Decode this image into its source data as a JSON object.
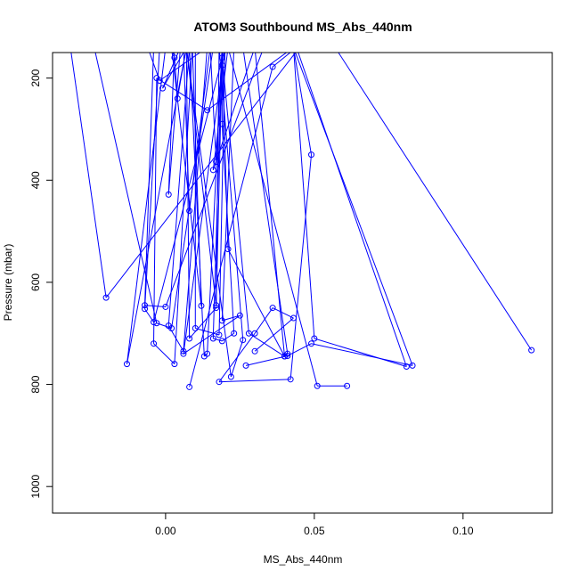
{
  "chart_data": {
    "type": "line",
    "title": "ATOM3 Southbound MS_Abs_440nm",
    "xlabel": "MS_Abs_440nm",
    "ylabel": "Pressure (mbar)",
    "xlim": [
      -0.038,
      0.13
    ],
    "ylim": [
      1052,
      150
    ],
    "y_reversed": true,
    "x_ticks": [
      0.0,
      0.05,
      0.1
    ],
    "x_tick_labels": [
      "0.00",
      "0.05",
      "0.10"
    ],
    "y_ticks": [
      200,
      400,
      600,
      800,
      1000
    ],
    "y_tick_labels": [
      "200",
      "400",
      "600",
      "800",
      "1000"
    ],
    "grid": false,
    "legend": "none",
    "series_color": "#0000ff",
    "series": [
      {
        "x": [
          -0.032,
          -0.02,
          0.045,
          0.057,
          0.123
        ],
        "y": [
          140,
          630,
          140,
          140,
          733
        ]
      },
      {
        "x": [
          -0.004,
          -0.007,
          0.0,
          0.033,
          0.043,
          0.05,
          0.081,
          0.044,
          0.036,
          0.008
        ],
        "y": [
          140,
          645,
          648,
          140,
          140,
          710,
          765,
          140,
          178,
          805
        ]
      },
      {
        "x": [
          -0.002,
          -0.007,
          -0.004,
          0.02,
          0.0,
          -0.001,
          0.019,
          0.019,
          0.021,
          0.051,
          0.061
        ],
        "y": [
          140,
          652,
          678,
          140,
          140,
          140,
          140,
          140,
          140,
          803,
          803
        ]
      },
      {
        "x": [
          -0.024,
          -0.003,
          0.002,
          0.016,
          0.002,
          0.012,
          0.009,
          0.003,
          -0.004,
          -0.003,
          0.014,
          0.043,
          0.083,
          0.049,
          0.041,
          0.027
        ],
        "y": [
          140,
          680,
          690,
          140,
          140,
          646,
          140,
          760,
          720,
          200,
          263,
          140,
          763,
          720,
          744,
          763
        ]
      },
      {
        "x": [
          0.01,
          0.01,
          0.018,
          0.02,
          0.023,
          0.019,
          0.025,
          0.006,
          0.02,
          0.021,
          0.016,
          0.03,
          0.04,
          0.041,
          0.026,
          0.018,
          0.026,
          0.022,
          0.007
        ],
        "y": [
          140,
          690,
          703,
          140,
          140,
          675,
          665,
          740,
          140,
          140,
          380,
          140,
          745,
          740,
          140,
          140,
          713,
          785,
          140
        ]
      },
      {
        "x": [
          -0.006,
          -0.002,
          0.014,
          0.006,
          0.001,
          0.008,
          0.013,
          0.014,
          0.019,
          0.019,
          0.023,
          0.019,
          0.016,
          0.019,
          0.043,
          0.049,
          0.042,
          0.018,
          0.03,
          0.036,
          0.043,
          0.03
        ],
        "y": [
          140,
          205,
          140,
          735,
          685,
          140,
          745,
          740,
          140,
          290,
          700,
          715,
          710,
          140,
          140,
          350,
          790,
          795,
          700,
          650,
          670,
          735
        ]
      },
      {
        "x": [
          0.007,
          -0.001,
          0.005,
          0.001,
          0.003,
          0.006,
          0.008,
          0.015,
          0.017,
          0.019,
          0.019,
          0.021,
          0.04,
          0.028,
          0.019,
          0.017,
          0.008,
          0.007,
          0.002,
          0.003,
          0.004,
          0.007,
          -0.013,
          0.0,
          0.007,
          0.017,
          0.018,
          0.019,
          0.019
        ],
        "y": [
          140,
          220,
          140,
          428,
          140,
          140,
          460,
          140,
          364,
          140,
          140,
          535,
          745,
          700,
          160,
          650,
          710,
          140,
          140,
          160,
          240,
          140,
          760,
          140,
          140,
          645,
          140,
          140,
          175
        ]
      }
    ]
  }
}
